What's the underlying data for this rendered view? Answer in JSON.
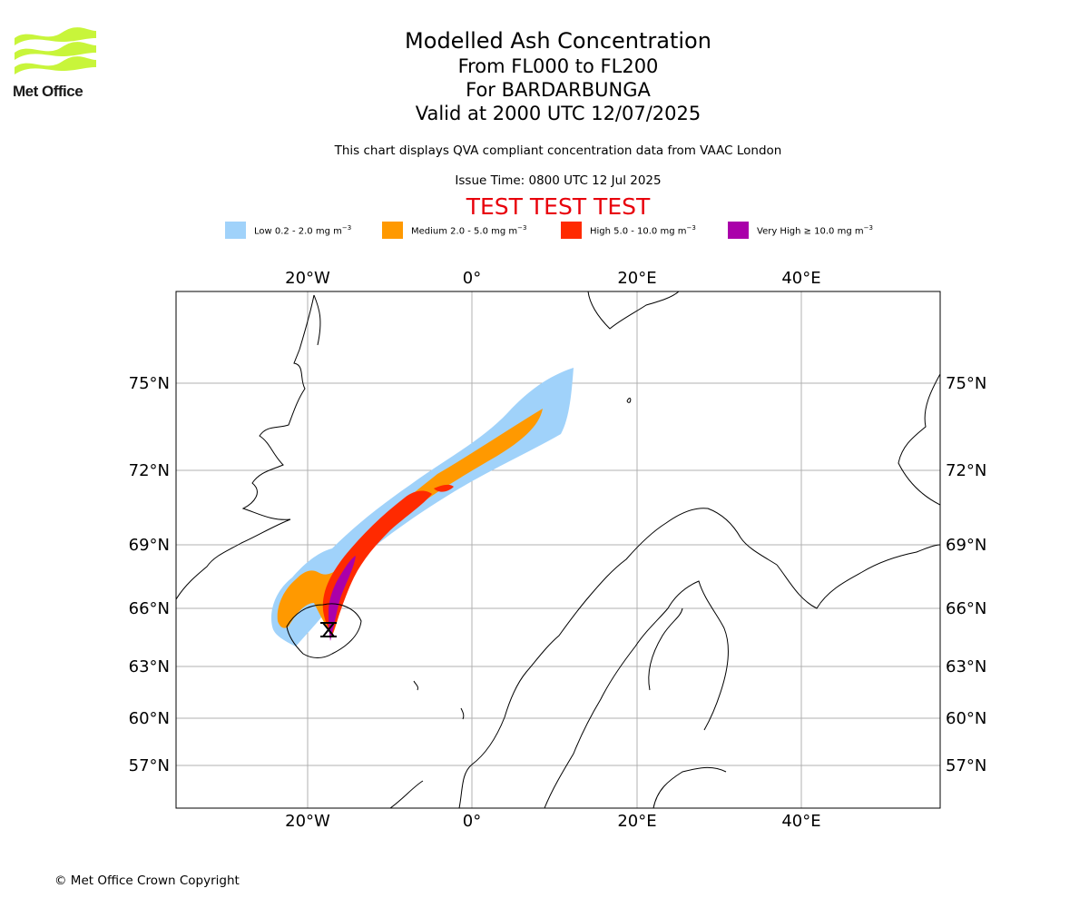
{
  "brand": {
    "logo_text": "Met Office",
    "logo_color": "#c8f53a"
  },
  "header": {
    "title": "Modelled Ash Concentration",
    "levels": "From FL000 to FL200",
    "volcano": "For BARDARBUNGA",
    "valid": "Valid at 2000 UTC 12/07/2025",
    "description": "This chart displays QVA compliant concentration data from VAAC London",
    "issue_time": "Issue Time: 0800 UTC 12 Jul 2025",
    "test_banner": "TEST TEST TEST"
  },
  "legend": [
    {
      "name": "Low",
      "label": "Low 0.2 - 2.0 mg m",
      "unit_exp": "−3",
      "color": "#a0d2fa"
    },
    {
      "name": "Medium",
      "label": "Medium 2.0 - 5.0 mg m",
      "unit_exp": "−3",
      "color": "#ff9900"
    },
    {
      "name": "High",
      "label": "High 5.0 - 10.0 mg m",
      "unit_exp": "−3",
      "color": "#ff2a00"
    },
    {
      "name": "Very High",
      "label": "Very High  ≥  10.0 mg m",
      "unit_exp": "−3",
      "color": "#aa00aa"
    }
  ],
  "map": {
    "top_lon_labels": [
      "20°W",
      "0°",
      "20°E",
      "40°E"
    ],
    "bottom_lon_labels": [
      "20°W",
      "0°",
      "20°E",
      "40°E"
    ],
    "left_lat_labels": [
      "75°N",
      "72°N",
      "69°N",
      "66°N",
      "63°N",
      "60°N",
      "57°N"
    ],
    "right_lat_labels": [
      "75°N",
      "72°N",
      "69°N",
      "66°N",
      "63°N",
      "60°N",
      "57°N"
    ],
    "gridlines": true
  },
  "footer": {
    "copyright": "© Met Office Crown Copyright"
  }
}
